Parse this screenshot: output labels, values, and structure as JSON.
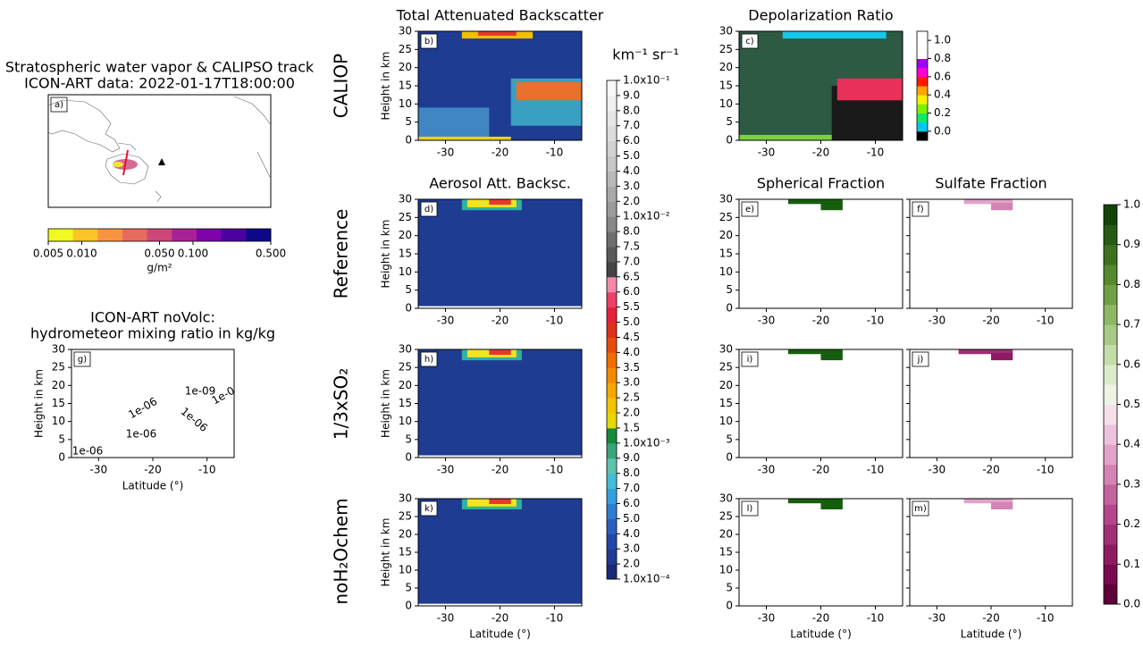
{
  "row_labels": [
    "CALIOP",
    "Reference",
    "1/3xSO₂",
    "noH₂Ochem"
  ],
  "chart_data": [
    {
      "type": "map",
      "panel": "a)",
      "title": [
        "Stratospheric water vapor & CALIPSO track",
        "ICON-ART data: 2022-01-17T18:00:00"
      ]
    },
    {
      "type": "colorbar",
      "orientation": "horizontal",
      "scale": "log",
      "label": "g/m²",
      "xlim": [
        0.005,
        0.5
      ],
      "ticks": [
        {
          "value": 0.005,
          "label": "0.005"
        },
        {
          "value": 0.01,
          "label": "0.010"
        },
        {
          "value": 0.05,
          "label": "0.050"
        },
        {
          "value": 0.1,
          "label": "0.100"
        },
        {
          "value": 0.5,
          "label": "0.500"
        }
      ],
      "colors": [
        "#f0f921",
        "#fdc328",
        "#f89441",
        "#e56b5d",
        "#cb4679",
        "#a82296",
        "#7e03a8",
        "#4c02a1",
        "#0d0887"
      ]
    },
    {
      "type": "curtain",
      "panel": "g)",
      "title": [
        "ICON-ART noVolc:",
        "hydrometeor mixing ratio in kg/kg"
      ],
      "ylabel": "Height in km",
      "xlabel": "Latitude (°)",
      "xlim": [
        -35,
        -5
      ],
      "ylim": [
        0,
        30
      ],
      "xticks": [
        -30,
        -20,
        -10
      ],
      "yticks": [
        0,
        5,
        10,
        15,
        20,
        25,
        30
      ],
      "show_ytick_labels": true,
      "contour_labels": [
        "1e-06",
        "1e-09",
        "1e-0",
        "1e-06",
        "1e-06",
        "1e-06"
      ],
      "regions": []
    },
    {
      "type": "curtain",
      "panel": "b)",
      "title": "Total Attenuated Backscatter",
      "ylabel": "Height in km",
      "xlim": [
        -35,
        -5
      ],
      "ylim": [
        0,
        30
      ],
      "xticks": [
        -30,
        -20,
        -10
      ],
      "yticks": [
        0,
        5,
        10,
        15,
        20,
        25,
        30
      ],
      "show_ytick_labels": true,
      "regions": [
        {
          "x": [
            -35,
            -5
          ],
          "y": [
            0,
            30
          ],
          "color": "#1f3c93"
        },
        {
          "x": [
            -35,
            -22
          ],
          "y": [
            0,
            9
          ],
          "color": "#3f86c2"
        },
        {
          "x": [
            -18,
            -5
          ],
          "y": [
            4,
            17
          ],
          "color": "#3a9fc0"
        },
        {
          "x": [
            -17,
            -5
          ],
          "y": [
            11,
            16
          ],
          "color": "#e8702a"
        },
        {
          "x": [
            -35,
            -18
          ],
          "y": [
            0,
            1
          ],
          "color": "#e6d800"
        },
        {
          "x": [
            -27,
            -14
          ],
          "y": [
            28,
            30
          ],
          "color": "#f0c000"
        },
        {
          "x": [
            -24,
            -17
          ],
          "y": [
            28.8,
            30
          ],
          "color": "#e8382b"
        }
      ]
    },
    {
      "type": "curtain",
      "panel": "c)",
      "title": "Depolarization Ratio",
      "xlim": [
        -35,
        -5
      ],
      "ylim": [
        0,
        30
      ],
      "xticks": [
        -30,
        -20,
        -10
      ],
      "yticks": [
        0,
        5,
        10,
        15,
        20,
        25,
        30
      ],
      "show_ytick_labels": true,
      "regions": [
        {
          "x": [
            -35,
            -5
          ],
          "y": [
            0,
            30
          ],
          "color": "#2e5a44"
        },
        {
          "x": [
            -18,
            -5
          ],
          "y": [
            0,
            15
          ],
          "color": "#1a1a1a"
        },
        {
          "x": [
            -17,
            -5
          ],
          "y": [
            11,
            17
          ],
          "color": "#e8305a"
        },
        {
          "x": [
            -27,
            -8
          ],
          "y": [
            28,
            30
          ],
          "color": "#19c8e8"
        },
        {
          "x": [
            -35,
            -18
          ],
          "y": [
            0,
            1.5
          ],
          "color": "#7bd23a"
        }
      ]
    },
    {
      "type": "colorbar",
      "orientation": "vertical",
      "scale": "index",
      "label": "km⁻¹ sr⁻¹",
      "ticks": [
        {
          "value": 0.0001,
          "label": "1.0x10⁻⁴"
        },
        {
          "value": 0.0002,
          "label": "2.0"
        },
        {
          "value": 0.0003,
          "label": "3.0"
        },
        {
          "value": 0.0004,
          "label": "4.0"
        },
        {
          "value": 0.0005,
          "label": "5.0"
        },
        {
          "value": 0.0006,
          "label": "6.0"
        },
        {
          "value": 0.0007,
          "label": "7.0"
        },
        {
          "value": 0.0008,
          "label": "8.0"
        },
        {
          "value": 0.0009,
          "label": "9.0"
        },
        {
          "value": 0.001,
          "label": "1.0x10⁻³"
        },
        {
          "value": 0.0015,
          "label": "1.5"
        },
        {
          "value": 0.002,
          "label": "2.0"
        },
        {
          "value": 0.0025,
          "label": "2.5"
        },
        {
          "value": 0.003,
          "label": "3.0"
        },
        {
          "value": 0.0035,
          "label": "3.5"
        },
        {
          "value": 0.004,
          "label": "4.0"
        },
        {
          "value": 0.0045,
          "label": "4.5"
        },
        {
          "value": 0.005,
          "label": "5.0"
        },
        {
          "value": 0.0055,
          "label": "5.5"
        },
        {
          "value": 0.006,
          "label": "6.0"
        },
        {
          "value": 0.0065,
          "label": "6.5"
        },
        {
          "value": 0.007,
          "label": "7.0"
        },
        {
          "value": 0.0075,
          "label": "7.5"
        },
        {
          "value": 0.008,
          "label": "8.0"
        },
        {
          "value": 0.01,
          "label": "1.0x10⁻²"
        },
        {
          "value": 0.02,
          "label": "2.0"
        },
        {
          "value": 0.03,
          "label": "3.0"
        },
        {
          "value": 0.04,
          "label": "4.0"
        },
        {
          "value": 0.05,
          "label": "5.0"
        },
        {
          "value": 0.06,
          "label": "6.0"
        },
        {
          "value": 0.07,
          "label": "7.0"
        },
        {
          "value": 0.08,
          "label": "8.0"
        },
        {
          "value": 0.09,
          "label": "9.0"
        },
        {
          "value": 0.1,
          "label": "1.0x10⁻¹"
        }
      ],
      "colors": [
        "#1a2a7a",
        "#1f3a93",
        "#2347a8",
        "#2a5fbf",
        "#2f7fd0",
        "#32a0dc",
        "#45bcd8",
        "#5cc3b0",
        "#3aa57a",
        "#148a3c",
        "#e6d800",
        "#f5c400",
        "#f7a800",
        "#f58a00",
        "#f06e00",
        "#e84e0a",
        "#e0301a",
        "#e8203a",
        "#ee3f66",
        "#f48aa8",
        "#444444",
        "#5a5a5a",
        "#6e6e6e",
        "#888888",
        "#9a9a9a",
        "#aaaaaa",
        "#b8b8b8",
        "#c6c6c6",
        "#d2d2d2",
        "#dddddd",
        "#e7e7e7",
        "#f0f0f0",
        "#f8f8f8"
      ]
    },
    {
      "type": "colorbar",
      "orientation": "vertical",
      "scale": "linear",
      "ylim": [
        -0.1,
        1.1
      ],
      "ticks": [
        {
          "value": 0,
          "label": "0.0"
        },
        {
          "value": 0.2,
          "label": "0.2"
        },
        {
          "value": 0.4,
          "label": "0.4"
        },
        {
          "value": 0.6,
          "label": "0.6"
        },
        {
          "value": 0.8,
          "label": "0.8"
        },
        {
          "value": 1,
          "label": "1.0"
        }
      ],
      "colors": [
        "#000000",
        "#00c8f0",
        "#12e86a",
        "#7df000",
        "#f5f000",
        "#ffa500",
        "#ff1a00",
        "#ff00d0",
        "#a000ff",
        "#ffffff",
        "#ffffff",
        "#ffffff"
      ]
    },
    {
      "type": "curtain",
      "panel": "d)",
      "title": "Aerosol Att. Backsc.",
      "ylabel": "Height in km",
      "xlim": [
        -35,
        -5
      ],
      "ylim": [
        0,
        30
      ],
      "xticks": [
        -30,
        -20,
        -10
      ],
      "yticks": [
        0,
        5,
        10,
        15,
        20,
        25,
        30
      ],
      "show_ytick_labels": true,
      "regions": [
        {
          "x": [
            -35,
            -5
          ],
          "y": [
            0,
            30
          ],
          "color": "#1f3c93"
        },
        {
          "x": [
            -27,
            -16
          ],
          "y": [
            27,
            30
          ],
          "color": "#2fb0a0"
        },
        {
          "x": [
            -26,
            -17
          ],
          "y": [
            27.8,
            30
          ],
          "color": "#f2e51d"
        },
        {
          "x": [
            -22,
            -18
          ],
          "y": [
            28.5,
            30
          ],
          "color": "#e8382b"
        },
        {
          "x": [
            -35,
            -5
          ],
          "y": [
            0,
            0.6
          ],
          "color": "#ffffff"
        }
      ]
    },
    {
      "type": "curtain",
      "panel": "e)",
      "title": "Spherical Fraction",
      "xlim": [
        -35,
        -5
      ],
      "ylim": [
        0,
        30
      ],
      "xticks": [
        -30,
        -20,
        -10
      ],
      "yticks": [
        0,
        5,
        10,
        15,
        20,
        25,
        30
      ],
      "show_ytick_labels": true,
      "regions": [
        {
          "x": [
            -26,
            -16
          ],
          "y": [
            28.7,
            30
          ],
          "color": "#155e0d"
        },
        {
          "x": [
            -20,
            -16
          ],
          "y": [
            27,
            29
          ],
          "color": "#155e0d"
        }
      ]
    },
    {
      "type": "curtain",
      "panel": "f)",
      "title": "Sulfate Fraction",
      "xlim": [
        -35,
        -5
      ],
      "ylim": [
        0,
        30
      ],
      "xticks": [
        -30,
        -20,
        -10
      ],
      "yticks": [
        0,
        5,
        10,
        15,
        20,
        25,
        30
      ],
      "show_ytick_labels": false,
      "regions": [
        {
          "x": [
            -25,
            -16
          ],
          "y": [
            28.7,
            30
          ],
          "color": "#e2a2c9"
        },
        {
          "x": [
            -20,
            -16
          ],
          "y": [
            27,
            29
          ],
          "color": "#d483b5"
        }
      ]
    },
    {
      "type": "curtain",
      "panel": "h)",
      "ylabel": "Height in km",
      "xlim": [
        -35,
        -5
      ],
      "ylim": [
        0,
        30
      ],
      "xticks": [
        -30,
        -20,
        -10
      ],
      "yticks": [
        0,
        5,
        10,
        15,
        20,
        25,
        30
      ],
      "show_ytick_labels": true,
      "regions": [
        {
          "x": [
            -35,
            -5
          ],
          "y": [
            0,
            30
          ],
          "color": "#1f3c93"
        },
        {
          "x": [
            -27,
            -16
          ],
          "y": [
            27,
            30
          ],
          "color": "#2fb0a0"
        },
        {
          "x": [
            -26,
            -17
          ],
          "y": [
            27.8,
            30
          ],
          "color": "#f2e51d"
        },
        {
          "x": [
            -22,
            -18
          ],
          "y": [
            28.5,
            30
          ],
          "color": "#e8382b"
        },
        {
          "x": [
            -35,
            -5
          ],
          "y": [
            0,
            0.6
          ],
          "color": "#ffffff"
        }
      ]
    },
    {
      "type": "curtain",
      "panel": "i)",
      "xlim": [
        -35,
        -5
      ],
      "ylim": [
        0,
        30
      ],
      "xticks": [
        -30,
        -20,
        -10
      ],
      "yticks": [
        0,
        5,
        10,
        15,
        20,
        25,
        30
      ],
      "show_ytick_labels": true,
      "regions": [
        {
          "x": [
            -26,
            -16
          ],
          "y": [
            28.7,
            30
          ],
          "color": "#155e0d"
        },
        {
          "x": [
            -20,
            -16
          ],
          "y": [
            27,
            29
          ],
          "color": "#155e0d"
        }
      ]
    },
    {
      "type": "curtain",
      "panel": "j)",
      "xlim": [
        -35,
        -5
      ],
      "ylim": [
        0,
        30
      ],
      "xticks": [
        -30,
        -20,
        -10
      ],
      "yticks": [
        0,
        5,
        10,
        15,
        20,
        25,
        30
      ],
      "show_ytick_labels": false,
      "regions": [
        {
          "x": [
            -26,
            -16
          ],
          "y": [
            28.7,
            30
          ],
          "color": "#a12f76"
        },
        {
          "x": [
            -20,
            -16
          ],
          "y": [
            27,
            29
          ],
          "color": "#8e1b62"
        }
      ]
    },
    {
      "type": "curtain",
      "panel": "k)",
      "ylabel": "Height in km",
      "xlabel": "Latitude (°)",
      "xlim": [
        -35,
        -5
      ],
      "ylim": [
        0,
        30
      ],
      "xticks": [
        -30,
        -20,
        -10
      ],
      "yticks": [
        0,
        5,
        10,
        15,
        20,
        25,
        30
      ],
      "show_ytick_labels": true,
      "regions": [
        {
          "x": [
            -35,
            -5
          ],
          "y": [
            0,
            30
          ],
          "color": "#1f3c93"
        },
        {
          "x": [
            -27,
            -16
          ],
          "y": [
            27,
            30
          ],
          "color": "#2fb0a0"
        },
        {
          "x": [
            -26,
            -17
          ],
          "y": [
            27.8,
            30
          ],
          "color": "#f2e51d"
        },
        {
          "x": [
            -22,
            -18
          ],
          "y": [
            28.5,
            30
          ],
          "color": "#e8382b"
        },
        {
          "x": [
            -35,
            -5
          ],
          "y": [
            0,
            0.6
          ],
          "color": "#ffffff"
        }
      ]
    },
    {
      "type": "curtain",
      "panel": "l)",
      "xlabel": "Latitude (°)",
      "xlim": [
        -35,
        -5
      ],
      "ylim": [
        0,
        30
      ],
      "xticks": [
        -30,
        -20,
        -10
      ],
      "yticks": [
        0,
        5,
        10,
        15,
        20,
        25,
        30
      ],
      "show_ytick_labels": true,
      "regions": [
        {
          "x": [
            -26,
            -16
          ],
          "y": [
            28.7,
            30
          ],
          "color": "#155e0d"
        },
        {
          "x": [
            -20,
            -16
          ],
          "y": [
            27,
            29
          ],
          "color": "#155e0d"
        }
      ]
    },
    {
      "type": "curtain",
      "panel": "m)",
      "xlabel": "Latitude (°)",
      "xlim": [
        -35,
        -5
      ],
      "ylim": [
        0,
        30
      ],
      "xticks": [
        -30,
        -20,
        -10
      ],
      "yticks": [
        0,
        5,
        10,
        15,
        20,
        25,
        30
      ],
      "show_ytick_labels": false,
      "regions": [
        {
          "x": [
            -25,
            -16
          ],
          "y": [
            28.7,
            30
          ],
          "color": "#e2a2c9"
        },
        {
          "x": [
            -20,
            -16
          ],
          "y": [
            27,
            29
          ],
          "color": "#d483b5"
        }
      ]
    },
    {
      "type": "colorbar",
      "orientation": "vertical",
      "scale": "linear",
      "ylim": [
        0,
        1
      ],
      "ticks": [
        {
          "value": 0,
          "label": "0.0"
        },
        {
          "value": 0.1,
          "label": "0.1"
        },
        {
          "value": 0.2,
          "label": "0.2"
        },
        {
          "value": 0.3,
          "label": "0.3"
        },
        {
          "value": 0.4,
          "label": "0.4"
        },
        {
          "value": 0.5,
          "label": "0.5"
        },
        {
          "value": 0.6,
          "label": "0.6"
        },
        {
          "value": 0.7,
          "label": "0.7"
        },
        {
          "value": 0.8,
          "label": "0.8"
        },
        {
          "value": 0.9,
          "label": "0.9"
        },
        {
          "value": 1,
          "label": "1.0"
        }
      ],
      "colors": [
        "#5e003a",
        "#7a0a4e",
        "#8e1b62",
        "#a12f76",
        "#b3478a",
        "#c4649f",
        "#d483b5",
        "#e2a2c9",
        "#edc2dc",
        "#f5e0ec",
        "#eef3e6",
        "#dcebcc",
        "#c3dca8",
        "#a8ca84",
        "#8db762",
        "#70a044",
        "#55882f",
        "#3d7120",
        "#275b12",
        "#124406"
      ]
    }
  ]
}
